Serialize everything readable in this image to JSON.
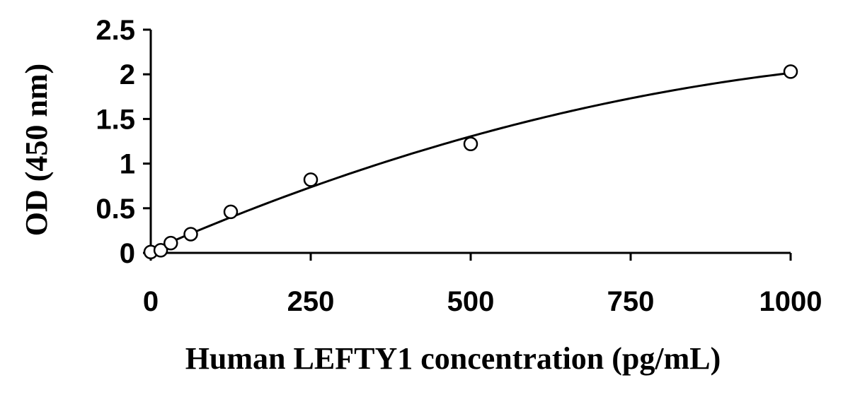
{
  "chart_data": {
    "type": "scatter",
    "title": "",
    "xlabel": "Human LEFTY1 concentration (pg/mL)",
    "ylabel": "OD (450 nm)",
    "xlim": [
      0,
      1000
    ],
    "ylim": [
      0,
      2.5
    ],
    "xticks": [
      0,
      250,
      500,
      750,
      1000
    ],
    "xtick_labels": [
      "0",
      "250",
      "500",
      "750",
      "1000"
    ],
    "yticks": [
      0,
      0.5,
      1,
      1.5,
      2,
      2.5
    ],
    "ytick_labels": [
      "0",
      "0.5",
      "1",
      "1.5",
      "2",
      "2.5"
    ],
    "grid": false,
    "legend": "none",
    "series": [
      {
        "x": [
          0,
          15.6,
          31.25,
          62.5,
          125,
          250,
          500,
          1000
        ],
        "y": [
          0.01,
          0.03,
          0.11,
          0.21,
          0.46,
          0.82,
          1.22,
          2.03
        ],
        "marker": "open-circle",
        "color": "#000000"
      }
    ],
    "trendline": {
      "type": "polynomial-fit",
      "color": "#000000"
    }
  }
}
